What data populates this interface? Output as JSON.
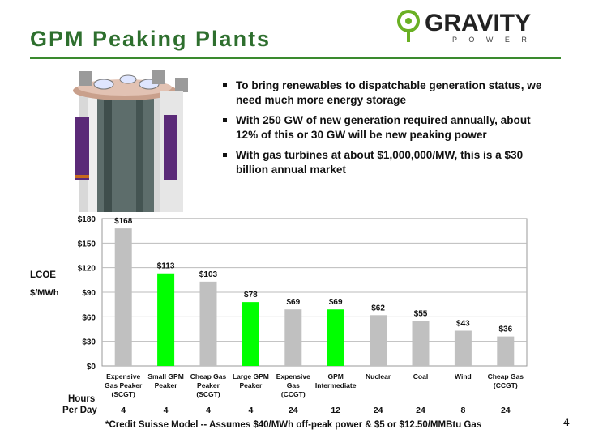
{
  "slide": {
    "title": "GPM Peaking Plants",
    "logo_word": "GRAVITY",
    "logo_sub": "P O W E R",
    "page_number": "4",
    "footnote": "*Credit Suisse Model  -- Assumes $40/MWh off-peak power & $5 or $12.50/MMBtu Gas"
  },
  "bullets": [
    "To bring renewables to dispatchable generation status, we need much more energy storage",
    "With 250 GW of new generation required annually, about 12% of this or 30 GW will be new peaking power",
    "With gas turbines at about $1,000,000/MW, this is a $30 billion annual market"
  ],
  "colors": {
    "title": "#2e6f2e",
    "accent_green": "#00ff00",
    "gray_bar": "#c0c0c0",
    "logo_green": "#6ab023"
  },
  "icons": [
    "gravity-power-logo",
    "gpm-plant-illustration",
    "bullet-square-icon"
  ],
  "chart_data": {
    "type": "bar",
    "ylabel_line1": "LCOE",
    "ylabel_line2": "$/MWh",
    "yticks": [
      "$180",
      "$150",
      "$120",
      "$90",
      "$60",
      "$30",
      "$0"
    ],
    "ylim": [
      0,
      180
    ],
    "grid": true,
    "hours_label_line1": "Hours",
    "hours_label_line2": "Per Day",
    "categories": [
      [
        "Expensive",
        "Gas Peaker",
        "(SCGT)"
      ],
      [
        "Small GPM",
        "Peaker"
      ],
      [
        "Cheap Gas",
        "Peaker",
        "(SCGT)"
      ],
      [
        "Large GPM",
        "Peaker"
      ],
      [
        "Expensive",
        "Gas",
        "(CCGT)"
      ],
      [
        "GPM",
        "Intermediate"
      ],
      [
        "Nuclear"
      ],
      [
        "Coal"
      ],
      [
        "Wind"
      ],
      [
        "Cheap Gas",
        "(CCGT)"
      ]
    ],
    "values": [
      168,
      113,
      103,
      78,
      69,
      69,
      62,
      55,
      43,
      36
    ],
    "value_labels": [
      "$168",
      "$113",
      "$103",
      "$78",
      "$69",
      "$69",
      "$62",
      "$55",
      "$43",
      "$36"
    ],
    "highlight": [
      false,
      true,
      false,
      true,
      false,
      true,
      false,
      false,
      false,
      false
    ],
    "hours_per_day": [
      "4",
      "4",
      "4",
      "4",
      "24",
      "12",
      "24",
      "24",
      "8",
      "24"
    ]
  }
}
